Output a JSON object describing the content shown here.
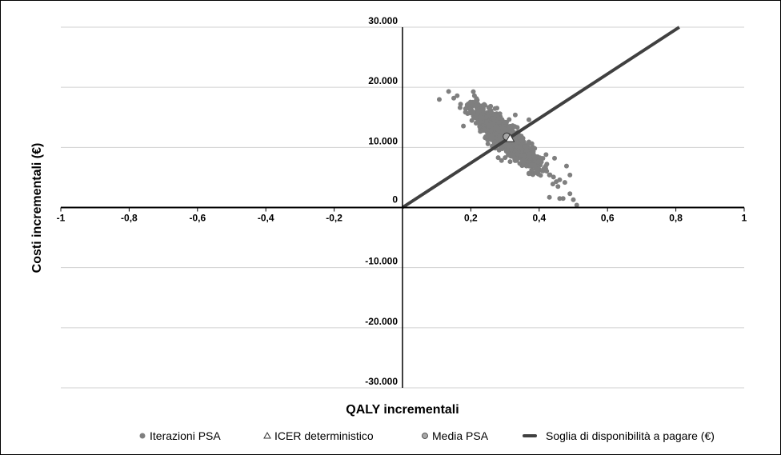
{
  "chart_data": {
    "type": "scatter",
    "xlabel": "QALY incrementali",
    "ylabel": "Costi incrementali (€)",
    "xlim": [
      -1,
      1
    ],
    "ylim": [
      -30000,
      30000
    ],
    "grid": "horizontal",
    "x_ticks": [
      -1,
      -0.8,
      -0.6,
      -0.4,
      -0.2,
      0,
      0.2,
      0.4,
      0.6,
      0.8,
      1
    ],
    "x_tick_labels": [
      "-1",
      "-0,8",
      "-0,6",
      "-0,4",
      "-0,2",
      "",
      "0,2",
      "0,4",
      "0,6",
      "0,8",
      "1"
    ],
    "y_ticks": [
      30000,
      20000,
      10000,
      0,
      -10000,
      -20000,
      -30000
    ],
    "y_tick_labels": [
      "30.000",
      "20.000",
      "10.000",
      "0",
      "-10.000",
      "-20.000",
      "-30.000"
    ],
    "legend_position": "bottom",
    "series": [
      {
        "name": "Iterazioni PSA",
        "kind": "scatter-cloud",
        "color": "#7f7f7f",
        "cloud": {
          "n": 1500,
          "mean": [
            0.3,
            11800
          ],
          "sd_major_qaly": 0.045,
          "slope": -46000,
          "sd_minor_cost": 1100,
          "seed": 7
        },
        "points": [
          [
            0.135,
            19300
          ],
          [
            0.15,
            18200
          ],
          [
            0.16,
            18600
          ],
          [
            0.17,
            17200
          ],
          [
            0.37,
            14600
          ],
          [
            0.33,
            15400
          ],
          [
            0.43,
            5400
          ],
          [
            0.45,
            4300
          ],
          [
            0.46,
            4600
          ],
          [
            0.48,
            6900
          ],
          [
            0.49,
            5400
          ],
          [
            0.47,
            1500
          ],
          [
            0.43,
            1700
          ],
          [
            0.46,
            1500
          ],
          [
            0.49,
            2300
          ],
          [
            0.5,
            1300
          ],
          [
            0.51,
            400
          ],
          [
            0.44,
            3900
          ],
          [
            0.455,
            3500
          ],
          [
            0.41,
            6100
          ],
          [
            0.39,
            5800
          ],
          [
            0.37,
            5700
          ],
          [
            0.28,
            8300
          ],
          [
            0.25,
            10600
          ],
          [
            0.42,
            8800
          ],
          [
            0.445,
            8200
          ]
        ]
      },
      {
        "name": "ICER deterministico",
        "kind": "triangle",
        "color": "#ffffff",
        "points": [
          [
            0.315,
            11500
          ]
        ]
      },
      {
        "name": "Media PSA",
        "kind": "circle",
        "color": "#a6a6a6",
        "points": [
          [
            0.305,
            11800
          ]
        ]
      },
      {
        "name": "Soglia di disponibilità a pagare (€)",
        "kind": "line",
        "color": "#404040",
        "points": [
          [
            0,
            0
          ],
          [
            0.81,
            30000
          ]
        ]
      }
    ]
  }
}
